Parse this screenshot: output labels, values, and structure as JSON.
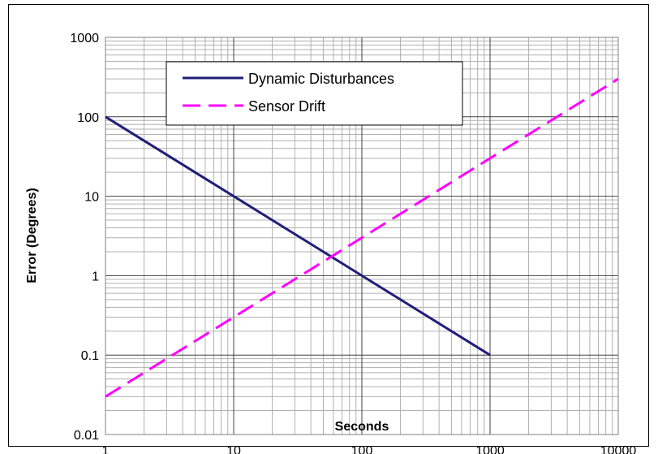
{
  "chart_data": {
    "type": "line",
    "title": "",
    "xlabel": "Seconds",
    "ylabel": "Error (Degrees)",
    "xscale": "log",
    "yscale": "log",
    "xlim": [
      1,
      10000
    ],
    "ylim": [
      0.01,
      1000
    ],
    "x_ticks": [
      "1",
      "10",
      "100",
      "1000",
      "10000"
    ],
    "y_ticks": [
      "0.01",
      "0.1",
      "1",
      "10",
      "100",
      "1000"
    ],
    "grid": true,
    "legend_position": "top-left",
    "series": [
      {
        "name": "Dynamic Disturbances",
        "color": "#1f1f7a",
        "style": "solid",
        "x": [
          1,
          1000
        ],
        "y": [
          100,
          0.1
        ]
      },
      {
        "name": "Sensor Drift",
        "color": "#ff00ff",
        "style": "dashed",
        "x": [
          1,
          10000
        ],
        "y": [
          0.03,
          300
        ]
      }
    ]
  }
}
